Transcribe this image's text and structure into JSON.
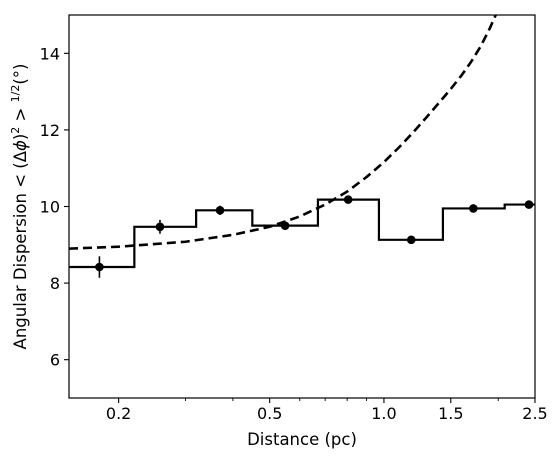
{
  "chart_data": {
    "type": "line",
    "xlabel": "Distance (pc)",
    "ylabel": "Angular Dispersion < (Δφ)² > ¹ᐟ²(°)",
    "ylabel_parts": {
      "prefix": "Angular Dispersion < (Δ",
      "phi": "ϕ",
      "mid": ")",
      "sup2": "2",
      "gt": " > ",
      "sup_half": "1/2",
      "suffix": "(°)"
    },
    "xscale": "log",
    "xlim": [
      0.148,
      2.5
    ],
    "ylim": [
      5,
      15
    ],
    "x_ticks": [
      {
        "value": 0.2,
        "label": "0.2"
      },
      {
        "value": 0.5,
        "label": "0.5"
      },
      {
        "value": 1.0,
        "label": "1.0"
      },
      {
        "value": 1.5,
        "label": "1.5"
      },
      {
        "value": 2.5,
        "label": "2.5"
      }
    ],
    "y_ticks": [
      {
        "value": 6,
        "label": "6"
      },
      {
        "value": 8,
        "label": "8"
      },
      {
        "value": 10,
        "label": "10"
      },
      {
        "value": 12,
        "label": "12"
      },
      {
        "value": 14,
        "label": "14"
      }
    ],
    "grid": false,
    "legend": "none",
    "series": [
      {
        "kind": "step",
        "color": "#000000",
        "bin_edges": [
          0.148,
          0.22,
          0.32,
          0.45,
          0.67,
          0.97,
          1.43,
          2.08,
          2.5
        ],
        "values": [
          8.42,
          9.47,
          9.9,
          9.5,
          10.18,
          9.13,
          9.95,
          10.05
        ]
      },
      {
        "kind": "points",
        "color": "#000000",
        "x": [
          0.178,
          0.257,
          0.37,
          0.549,
          0.805,
          1.18,
          1.72,
          2.41
        ],
        "y": [
          8.42,
          9.47,
          9.9,
          9.5,
          10.18,
          9.13,
          9.95,
          10.05
        ],
        "yerr": [
          0.28,
          0.18,
          0.12,
          0.07,
          0.05,
          0.04,
          0.05,
          0.05
        ]
      },
      {
        "kind": "dashed-curve",
        "color": "#000000",
        "x": [
          0.148,
          0.2,
          0.3,
          0.4,
          0.5,
          0.6,
          0.7,
          0.8,
          0.9,
          1.0,
          1.1,
          1.2,
          1.3,
          1.4,
          1.5,
          1.6,
          1.7,
          1.8,
          1.9,
          1.97,
          2.0
        ],
        "y": [
          8.9,
          8.95,
          9.08,
          9.26,
          9.47,
          9.74,
          10.05,
          10.39,
          10.77,
          11.16,
          11.56,
          11.96,
          12.35,
          12.72,
          13.07,
          13.42,
          13.79,
          14.19,
          14.65,
          15.0,
          15.15
        ]
      }
    ]
  }
}
